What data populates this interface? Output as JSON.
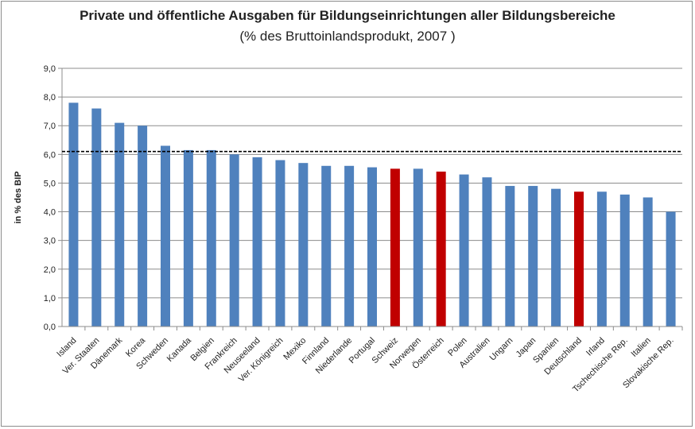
{
  "chart_data": {
    "type": "bar",
    "title": "Private und öffentliche Ausgaben für Bildungseinrichtungen aller Bildungsbereiche",
    "subtitle": "(% des Bruttoinlandsprodukt, 2007 )",
    "ylabel": "in % des BIP",
    "xlabel": "",
    "ylim": [
      0,
      9
    ],
    "yticks": [
      "0,0",
      "1,0",
      "2,0",
      "3,0",
      "4,0",
      "5,0",
      "6,0",
      "7,0",
      "8,0",
      "9,0"
    ],
    "grid": true,
    "legend": "none",
    "reference_line": 6.1,
    "categories": [
      "Island",
      "Ver. Staaten",
      "Dänemark",
      "Korea",
      "Schweden",
      "Kanada",
      "Belgien",
      "Frankreich",
      "Neuseeland",
      "Ver. Königreich",
      "Mexiko",
      "Finnland",
      "Niederlande",
      "Portugal",
      "Schweiz",
      "Norwegen",
      "Österreich",
      "Polen",
      "Australien",
      "Ungarn",
      "Japan",
      "Spanien",
      "Deutschland",
      "Irland",
      "Tschechische Rep.",
      "Italien",
      "Slovakische Rep."
    ],
    "values": [
      7.8,
      7.6,
      7.1,
      7.0,
      6.3,
      6.15,
      6.15,
      6.0,
      5.9,
      5.8,
      5.7,
      5.6,
      5.6,
      5.55,
      5.5,
      5.5,
      5.4,
      5.3,
      5.2,
      4.9,
      4.9,
      4.8,
      4.7,
      4.7,
      4.6,
      4.5,
      4.0
    ],
    "highlighted": [
      "Schweiz",
      "Österreich",
      "Deutschland"
    ],
    "colors": {
      "bar": "#4f81bd",
      "highlight": "#c00000",
      "grid": "#8c8c8c",
      "reference": "#000000"
    }
  }
}
